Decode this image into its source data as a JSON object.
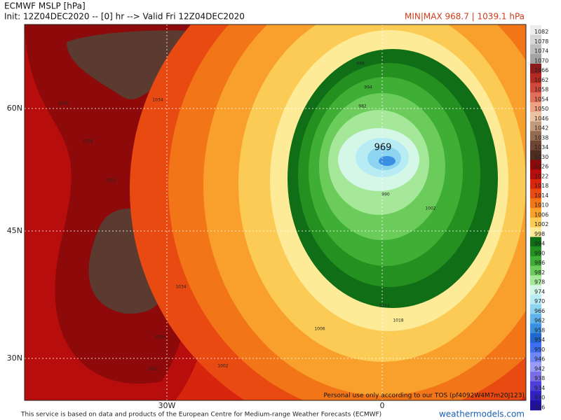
{
  "header": {
    "title": "ECMWF MSLP [hPa]",
    "init": "Init: 12Z04DEC2020 -- [0] hr --> Valid Fri 12Z04DEC2020",
    "minmax": "MIN|MAX 968.7 | 1039.1 hPa"
  },
  "axes": {
    "lat": [
      "60N",
      "45N",
      "30N"
    ],
    "lon": [
      "30W",
      "0"
    ]
  },
  "map": {
    "low_label": "969",
    "contour_labels": [
      "1026",
      "1034",
      "1018",
      "1010",
      "1034",
      "1026",
      "1022",
      "1002",
      "998",
      "994",
      "982",
      "990",
      "1002",
      "1014",
      "1006",
      "1018"
    ]
  },
  "colorbar": {
    "levels": [
      1082,
      1078,
      1074,
      1070,
      1066,
      1062,
      1058,
      1054,
      1050,
      1046,
      1042,
      1038,
      1034,
      1030,
      1026,
      1022,
      1018,
      1014,
      1010,
      1006,
      1002,
      998,
      994,
      990,
      986,
      982,
      978,
      974,
      970,
      966,
      962,
      958,
      954,
      950,
      946,
      942,
      938,
      934,
      930,
      926
    ],
    "colors": [
      "#ededed",
      "#d6d6d6",
      "#bdbdbd",
      "#a3a3a3",
      "#8c1c1c",
      "#b22a22",
      "#cf4a3c",
      "#e0705c",
      "#eda083",
      "#ebc2a2",
      "#c29a7a",
      "#946a50",
      "#6e4434",
      "#4f2c22",
      "#8e0a0a",
      "#b80d0d",
      "#d8260e",
      "#e84a12",
      "#f27618",
      "#f9a02c",
      "#fccb55",
      "#fdeb97",
      "#0f6e16",
      "#24901f",
      "#3fae35",
      "#6bcc5c",
      "#a6e89a",
      "#d4f7e8",
      "#b8ecf5",
      "#8cd4f0",
      "#5eb4ea",
      "#3a8fe0",
      "#2067d0",
      "#3f6ef0",
      "#6f86f5",
      "#9a9af7",
      "#7a6ee8",
      "#4e3fd8",
      "#3121c2",
      "#2010a0"
    ]
  },
  "footer": {
    "credit": "This service is based on data and products of the European Centre for Medium-range Weather Forecasts (ECMWF)",
    "site": "weathermodels.com",
    "tos": "Personal use only according to our TOS (pf4092W4M7m20J123)"
  }
}
